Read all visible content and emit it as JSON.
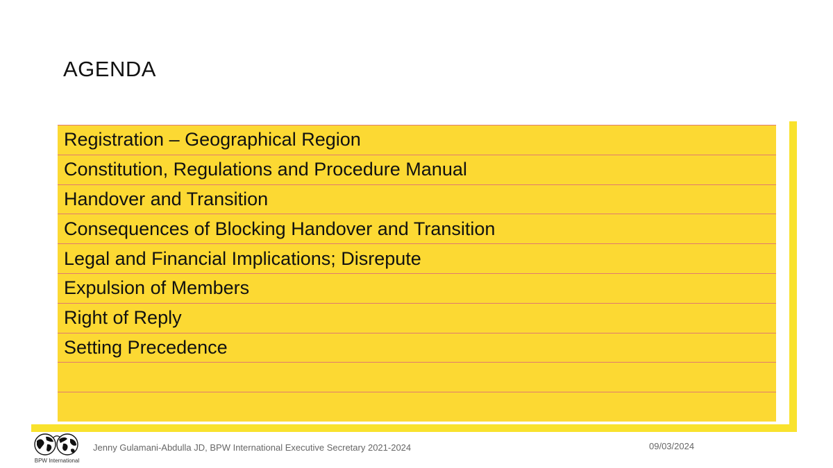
{
  "slide": {
    "title": "AGENDA",
    "agenda_items": [
      "Registration – Geographical Region",
      "Constitution, Regulations and Procedure Manual",
      "Handover and Transition",
      "Consequences of Blocking Handover and Transition",
      "Legal and Financial Implications; Disrepute",
      "Expulsion of Members",
      "Right of Reply",
      "Setting Precedence",
      "",
      ""
    ]
  },
  "footer": {
    "logo_caption": "BPW International",
    "author": "Jenny Gulamani-Abdulla JD, BPW International Executive Secretary 2021-2024",
    "date": "09/03/2024"
  },
  "colors": {
    "accent_yellow": "#f9e22d",
    "table_fill": "#fcd933",
    "row_divider": "#e07a6e"
  },
  "icons": {
    "logo": "bpw-globe-logo-icon"
  }
}
